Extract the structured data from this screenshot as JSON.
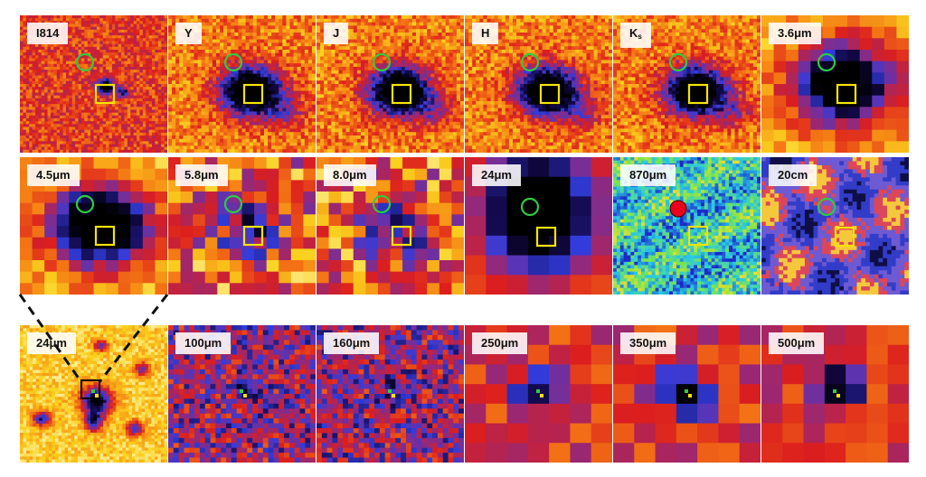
{
  "panels": [
    {
      "label": "I814",
      "style": "noise",
      "markers": [
        "green-circle",
        "yellow-square"
      ]
    },
    {
      "label": "Y",
      "style": "blob",
      "markers": [
        "green-circle",
        "yellow-square"
      ]
    },
    {
      "label": "J",
      "style": "blob",
      "markers": [
        "green-circle",
        "yellow-square"
      ]
    },
    {
      "label": "H",
      "style": "blob",
      "markers": [
        "green-circle",
        "yellow-square"
      ]
    },
    {
      "label": "K",
      "label_sub": "s",
      "style": "blob",
      "markers": [
        "green-circle",
        "yellow-square"
      ]
    },
    {
      "label": "3.6μm",
      "style": "pixel-blob",
      "markers": [
        "green-circle",
        "yellow-square"
      ]
    },
    {
      "label": "4.5μm",
      "style": "pixel-blob",
      "markers": [
        "green-circle",
        "yellow-square"
      ]
    },
    {
      "label": "5.8μm",
      "style": "pixel-faint",
      "markers": [
        "green-circle",
        "yellow-square"
      ]
    },
    {
      "label": "8.0μm",
      "style": "pixel-faint",
      "markers": [
        "green-circle",
        "yellow-square"
      ]
    },
    {
      "label": "24μm",
      "style": "pixel-big",
      "markers": [
        "green-circle",
        "yellow-square"
      ]
    },
    {
      "label": "870μm",
      "style": "submm",
      "markers": [
        "red-dot",
        "yellow-square"
      ]
    },
    {
      "label": "20cm",
      "style": "radio",
      "markers": [
        "green-circle",
        "yellow-square"
      ]
    },
    {
      "label": "24μm",
      "style": "wide",
      "markers": [
        "black-box",
        "green-yellow-dots"
      ]
    },
    {
      "label": "100μm",
      "style": "pix-fine",
      "markers": [
        "green-yellow-dots"
      ]
    },
    {
      "label": "160μm",
      "style": "pix-fine",
      "markers": [
        "green-yellow-dots"
      ]
    },
    {
      "label": "250μm",
      "style": "pix-coarse",
      "markers": [
        "green-yellow-dots"
      ]
    },
    {
      "label": "350μm",
      "style": "pix-coarse",
      "markers": [
        "green-yellow-dots"
      ]
    },
    {
      "label": "500μm",
      "style": "pix-coarse",
      "markers": [
        "green-yellow-dots"
      ]
    }
  ],
  "colors": {
    "marker_circle": "#2ecc40",
    "marker_square": "#f5e400",
    "marker_red": "#e8001c",
    "zoom_line": "#111111"
  }
}
